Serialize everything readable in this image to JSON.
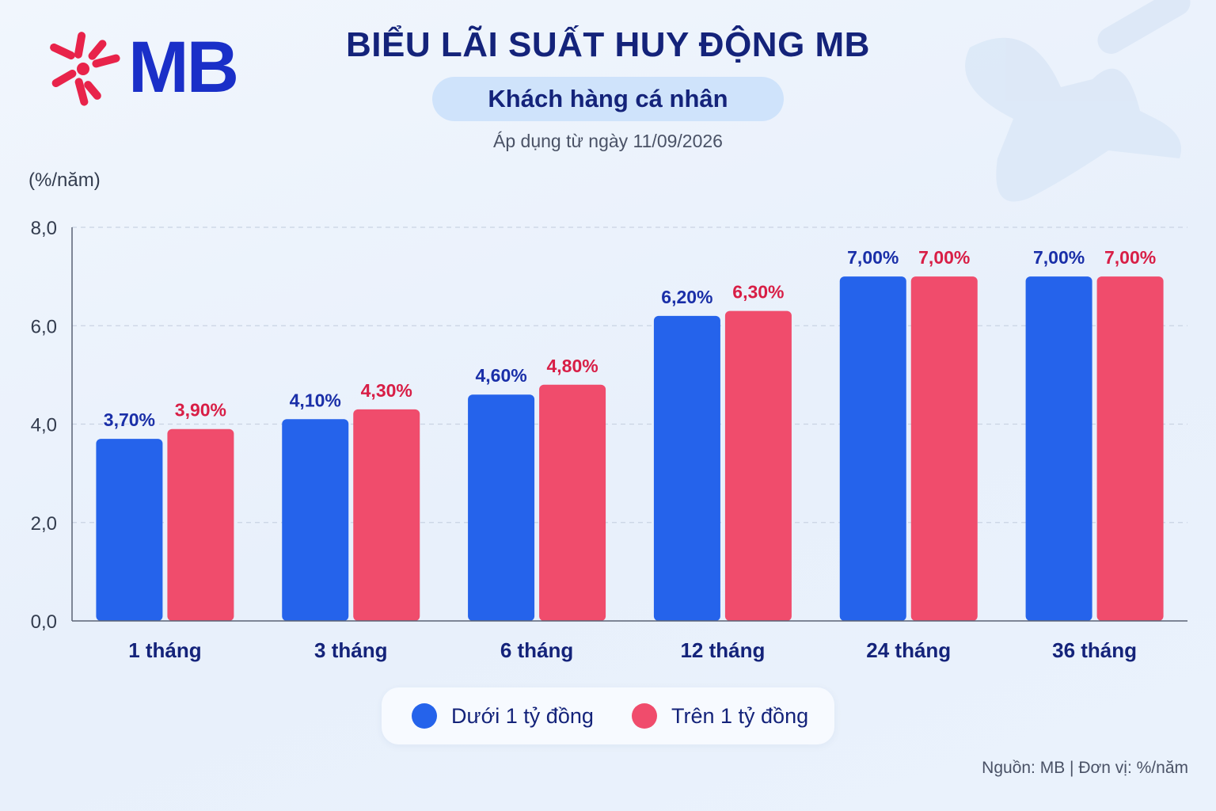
{
  "brand": {
    "logo_text": "MB",
    "logo_red": "#e8234a",
    "logo_blue": "#1a2fc8"
  },
  "header": {
    "title": "BIỂU LÃI SUẤT HUY ĐỘNG MB",
    "subtitle": "Khách hàng cá nhân",
    "date_note": "Áp dụng từ ngày 11/09/2026"
  },
  "chart_data": {
    "type": "bar",
    "title": "BIỂU LÃI SUẤT HUY ĐỘNG MB",
    "subtitle": "Khách hàng cá nhân",
    "ylabel": "(%/năm)",
    "xlabel": "",
    "ylim": [
      0,
      8
    ],
    "yticks": [
      0,
      2,
      4,
      6,
      8
    ],
    "ytick_labels": [
      "0,0",
      "2,0",
      "4,0",
      "6,0",
      "8,0"
    ],
    "grid": true,
    "legend_position": "bottom-center",
    "categories": [
      "1 tháng",
      "3 tháng",
      "6 tháng",
      "12 tháng",
      "24 tháng",
      "36 tháng"
    ],
    "series": [
      {
        "name": "Dưới 1 tỷ đồng",
        "color": "#2563eb",
        "label_color": "#1a2fa8",
        "values": [
          3.7,
          4.1,
          4.6,
          6.2,
          7.0,
          7.0
        ],
        "labels": [
          "3,70%",
          "4,10%",
          "4,60%",
          "6,20%",
          "7,00%",
          "7,00%"
        ]
      },
      {
        "name": "Trên 1 tỷ đồng",
        "color": "#f04c6c",
        "label_color": "#d81e46",
        "values": [
          3.9,
          4.3,
          4.8,
          6.3,
          7.0,
          7.0
        ],
        "labels": [
          "3,90%",
          "4,30%",
          "4,80%",
          "6,30%",
          "7,00%",
          "7,00%"
        ]
      }
    ]
  },
  "footer": {
    "source": "Nguồn: MB | Đơn vị: %/năm"
  }
}
